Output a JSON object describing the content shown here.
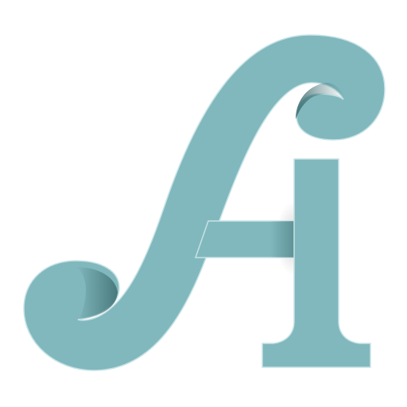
{
  "logo": {
    "fill_color": "#80b8bd",
    "edge_highlight_color": "#c7e3e6",
    "shadow_color": "#3f6e72",
    "background_color": "#ffffff"
  }
}
